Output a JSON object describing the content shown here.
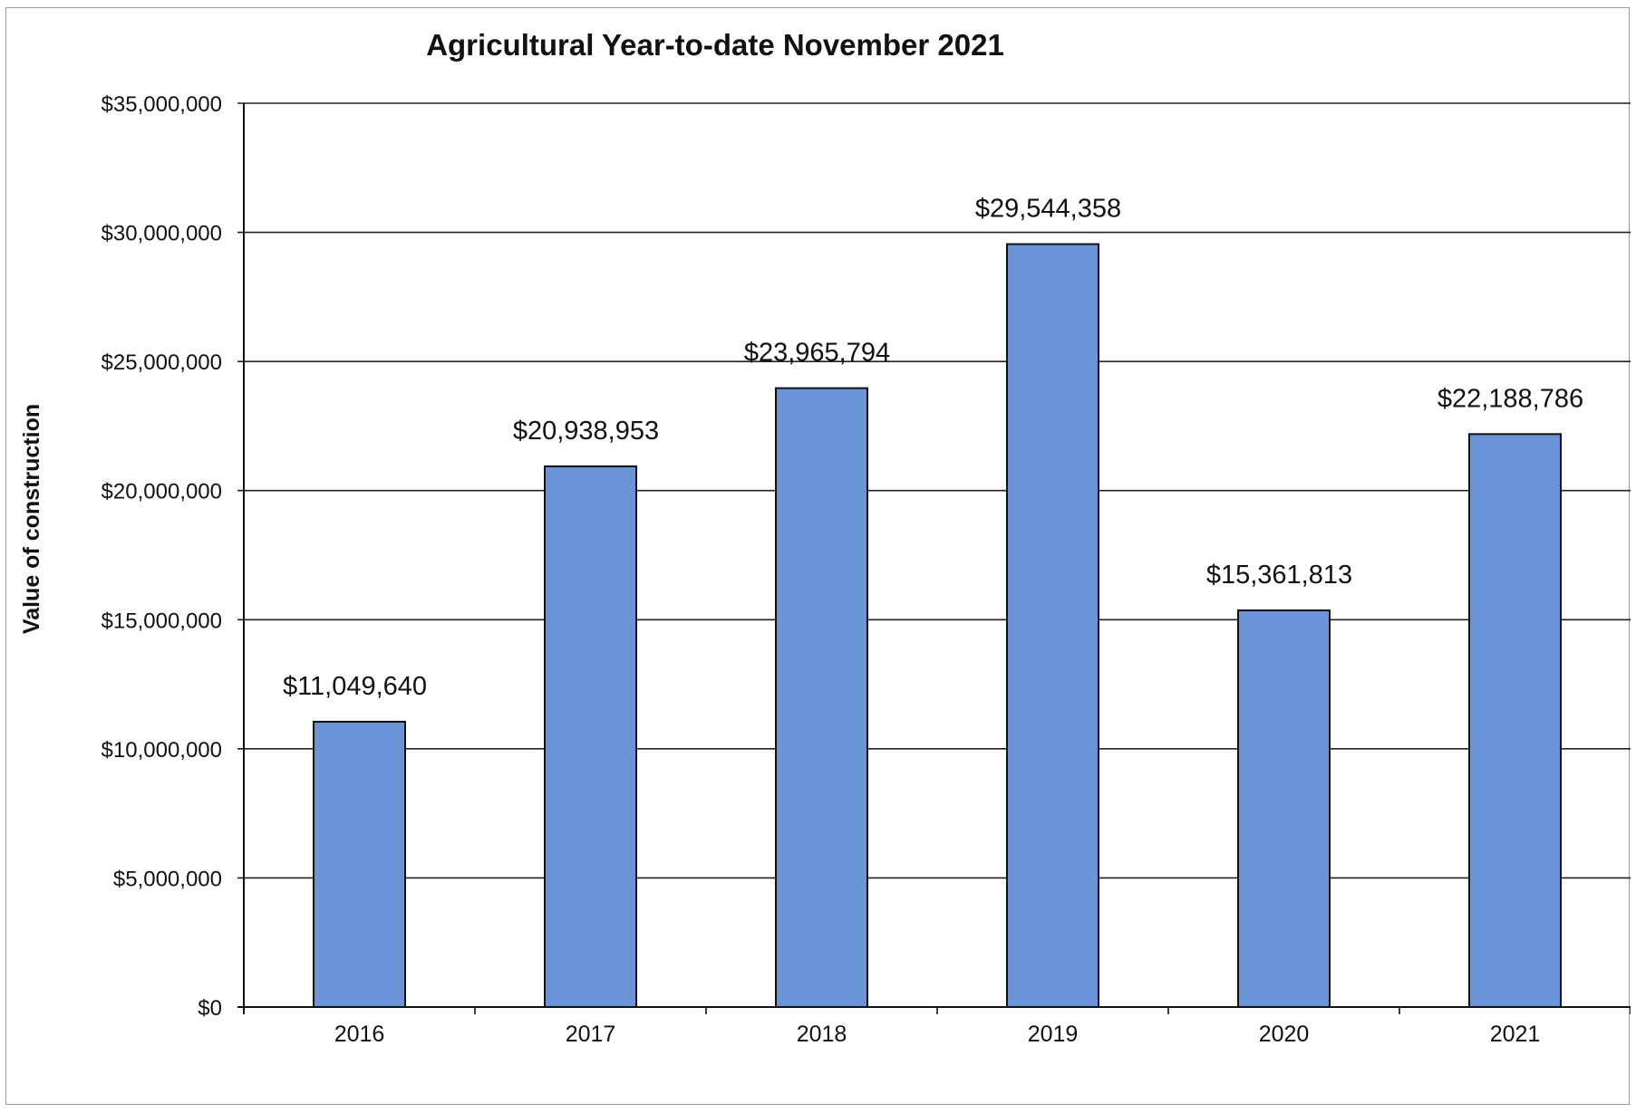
{
  "chart_data": {
    "type": "bar",
    "title": "Agricultural Year-to-date November 2021",
    "xlabel": "",
    "ylabel": "Value of construction",
    "categories": [
      "2016",
      "2017",
      "2018",
      "2019",
      "2020",
      "2021"
    ],
    "values": [
      11049640,
      20938953,
      23965794,
      29544358,
      15361813,
      22188786
    ],
    "data_labels": [
      "$11,049,640",
      "$20,938,953",
      "$23,965,794",
      "$29,544,358",
      "$15,361,813",
      "$22,188,786"
    ],
    "ylim": [
      0,
      35000000
    ],
    "yticks": [
      0,
      5000000,
      10000000,
      15000000,
      20000000,
      25000000,
      30000000,
      35000000
    ],
    "ytick_labels": [
      "$0",
      "$5,000,000",
      "$10,000,000",
      "$15,000,000",
      "$20,000,000",
      "$25,000,000",
      "$30,000,000",
      "$35,000,000"
    ],
    "grid": true,
    "legend": "none",
    "colors": {
      "bar_fill": "#6a93d8",
      "bar_stroke": "#111111",
      "grid": "#222222"
    }
  }
}
